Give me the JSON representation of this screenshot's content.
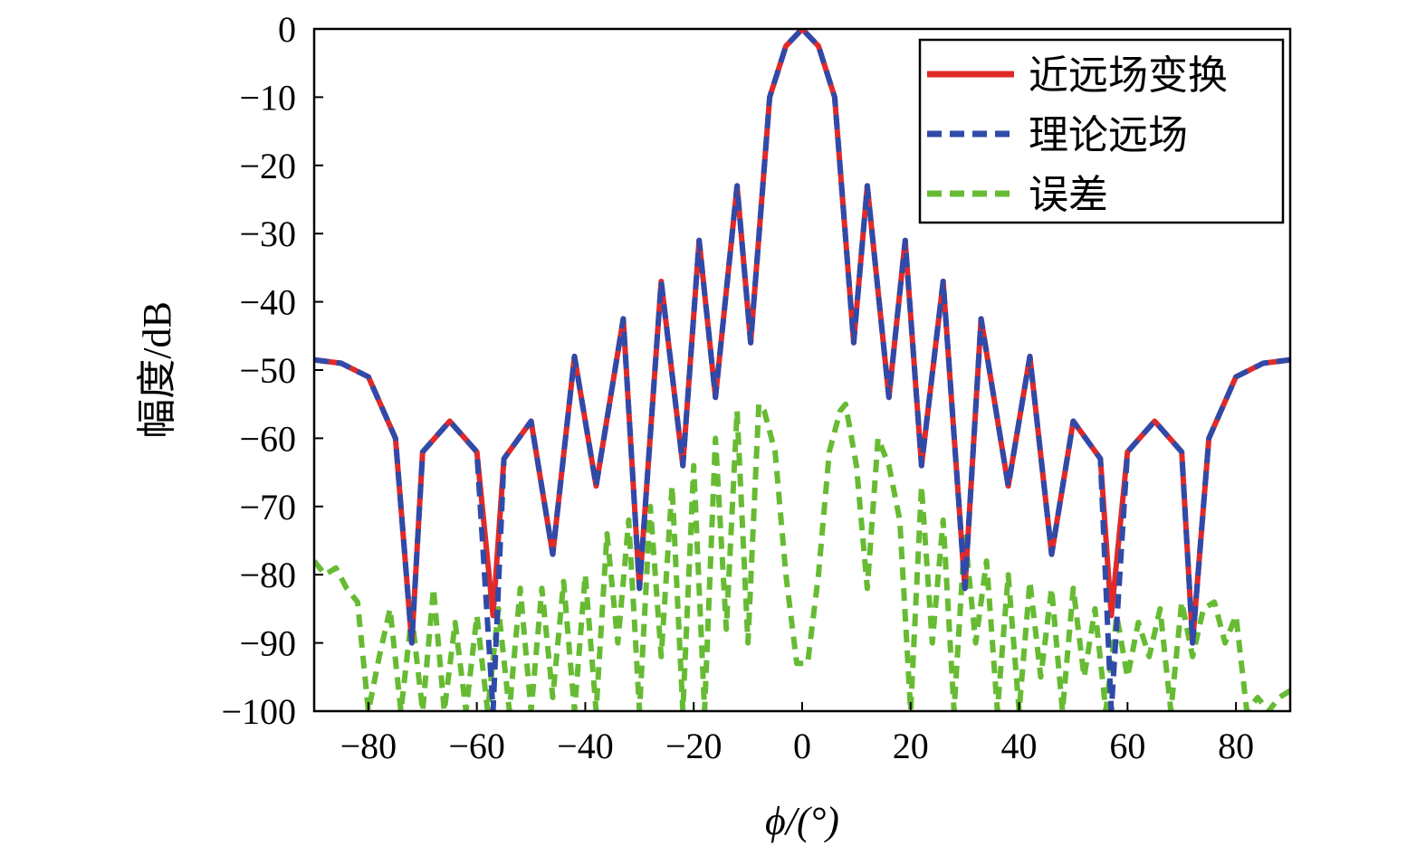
{
  "chart_data": {
    "type": "line",
    "title": "",
    "xlabel": "ϕ/(°)",
    "ylabel": "幅度/dB",
    "xlim": [
      -90,
      90
    ],
    "ylim": [
      -100,
      0
    ],
    "xticks": [
      -80,
      -60,
      -40,
      -20,
      0,
      20,
      40,
      60,
      80
    ],
    "xtick_labels": [
      "−80",
      "−60",
      "−40",
      "−20",
      "0",
      "20",
      "40",
      "60",
      "80"
    ],
    "yticks": [
      0,
      -10,
      -20,
      -30,
      -40,
      -50,
      -60,
      -70,
      -80,
      -90,
      -100
    ],
    "ytick_labels": [
      "0",
      "−10",
      "−20",
      "−30",
      "−40",
      "−50",
      "−60",
      "−70",
      "−80",
      "−90",
      "−100"
    ],
    "grid": false,
    "legend_position": "top-right",
    "x": [
      -90,
      -85,
      -80,
      -75,
      -72,
      -70,
      -65,
      -60,
      -57,
      -55,
      -50,
      -46,
      -42,
      -38,
      -33,
      -30,
      -26,
      -22,
      -19,
      -16,
      -12,
      -9.5,
      -6,
      -3,
      0,
      3,
      6,
      9.5,
      12,
      16,
      19,
      22,
      26,
      30,
      33,
      38,
      42,
      46,
      50,
      55,
      57,
      60,
      65,
      70,
      72,
      75,
      80,
      85,
      90
    ],
    "series": [
      {
        "name": "近远场变换",
        "color": "#e02a2a",
        "style": "solid",
        "values": [
          -48.5,
          -49,
          -51,
          -60,
          -90,
          -62,
          -57.5,
          -62,
          -86,
          -63,
          -57.5,
          -77,
          -48,
          -67,
          -42.5,
          -82,
          -37,
          -64,
          -31,
          -54,
          -23,
          -46,
          -10,
          -2.5,
          0,
          -2.5,
          -10,
          -46,
          -23,
          -54,
          -31,
          -64,
          -37,
          -82,
          -42.5,
          -67,
          -48,
          -77,
          -57.5,
          -63,
          -86,
          -62,
          -57.5,
          -62,
          -90,
          -60,
          -51,
          -49,
          -48.5
        ]
      },
      {
        "name": "理论远场",
        "color": "#2f4aa8",
        "style": "dashed",
        "values": [
          -48.5,
          -49,
          -51,
          -60,
          -90,
          -62,
          -57.5,
          -62,
          -100,
          -63,
          -57.5,
          -77,
          -48,
          -67,
          -42.5,
          -82,
          -37,
          -64,
          -31,
          -54,
          -23,
          -46,
          -10,
          -2.5,
          0,
          -2.5,
          -10,
          -46,
          -23,
          -54,
          -31,
          -64,
          -37,
          -82,
          -42.5,
          -67,
          -48,
          -77,
          -57.5,
          -63,
          -100,
          -62,
          -57.5,
          -62,
          -90,
          -60,
          -51,
          -49,
          -48.5
        ]
      },
      {
        "name": "误差",
        "color": "#66bb33",
        "style": "dashed",
        "x": [
          -90,
          -88,
          -86,
          -84,
          -82,
          -80,
          -78,
          -76,
          -74,
          -72,
          -70,
          -68,
          -66,
          -64,
          -62,
          -60,
          -58,
          -56,
          -54,
          -52,
          -50,
          -48,
          -46,
          -44,
          -42,
          -40,
          -38,
          -36,
          -34,
          -32,
          -30,
          -28,
          -26,
          -24,
          -22,
          -20,
          -18,
          -16,
          -14,
          -12,
          -10,
          -8,
          -7,
          -5,
          -3,
          -1,
          0,
          1,
          3,
          5,
          7,
          8,
          10,
          12,
          14,
          16,
          18,
          20,
          22,
          24,
          26,
          28,
          30,
          32,
          34,
          36,
          38,
          40,
          42,
          44,
          46,
          48,
          50,
          52,
          54,
          56,
          58,
          60,
          62,
          64,
          66,
          68,
          70,
          72,
          74,
          76,
          78,
          80,
          82,
          84,
          86,
          88,
          90
        ],
        "values": [
          -78,
          -80,
          -79,
          -82,
          -84,
          -100,
          -92,
          -85,
          -100,
          -86,
          -100,
          -82,
          -100,
          -87,
          -100,
          -86,
          -100,
          -85,
          -100,
          -82,
          -100,
          -82,
          -98,
          -81,
          -100,
          -80,
          -100,
          -74,
          -90,
          -72,
          -100,
          -70,
          -92,
          -67,
          -100,
          -64,
          -100,
          -60,
          -88,
          -56,
          -90,
          -55,
          -56,
          -62,
          -80,
          -93,
          -93,
          -93,
          -80,
          -62,
          -56,
          -55,
          -64,
          -82,
          -60,
          -64,
          -72,
          -100,
          -67,
          -90,
          -72,
          -100,
          -74,
          -90,
          -78,
          -100,
          -80,
          -100,
          -81,
          -95,
          -82,
          -100,
          -82,
          -95,
          -85,
          -100,
          -86,
          -95,
          -87,
          -92,
          -85,
          -100,
          -84,
          -92,
          -85,
          -84,
          -90,
          -86,
          -100,
          -98,
          -100,
          -98,
          -97
        ]
      }
    ]
  }
}
